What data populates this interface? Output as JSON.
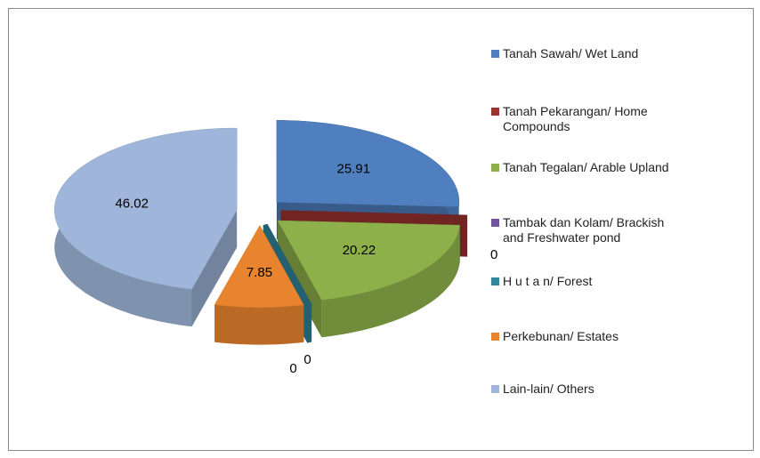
{
  "chart_data": {
    "type": "pie3d",
    "categories": [
      "Tanah Sawah/ Wet Land",
      "Tanah Pekarangan/ Home Compounds",
      "Tanah Tegalan/ Arable Upland",
      "Tambak dan Kolam/ Brackish and Freshwater pond",
      "H u t a n/ Forest",
      "Perkebunan/ Estates",
      "Lain-lain/ Others"
    ],
    "values": [
      25.91,
      0,
      20.22,
      0,
      0,
      7.85,
      46.02
    ],
    "colors": [
      "#4f7fbe",
      "#9b3330",
      "#8db04a",
      "#7253a0",
      "#31859c",
      "#e8842d",
      "#9fb6da"
    ],
    "legend": "right"
  }
}
